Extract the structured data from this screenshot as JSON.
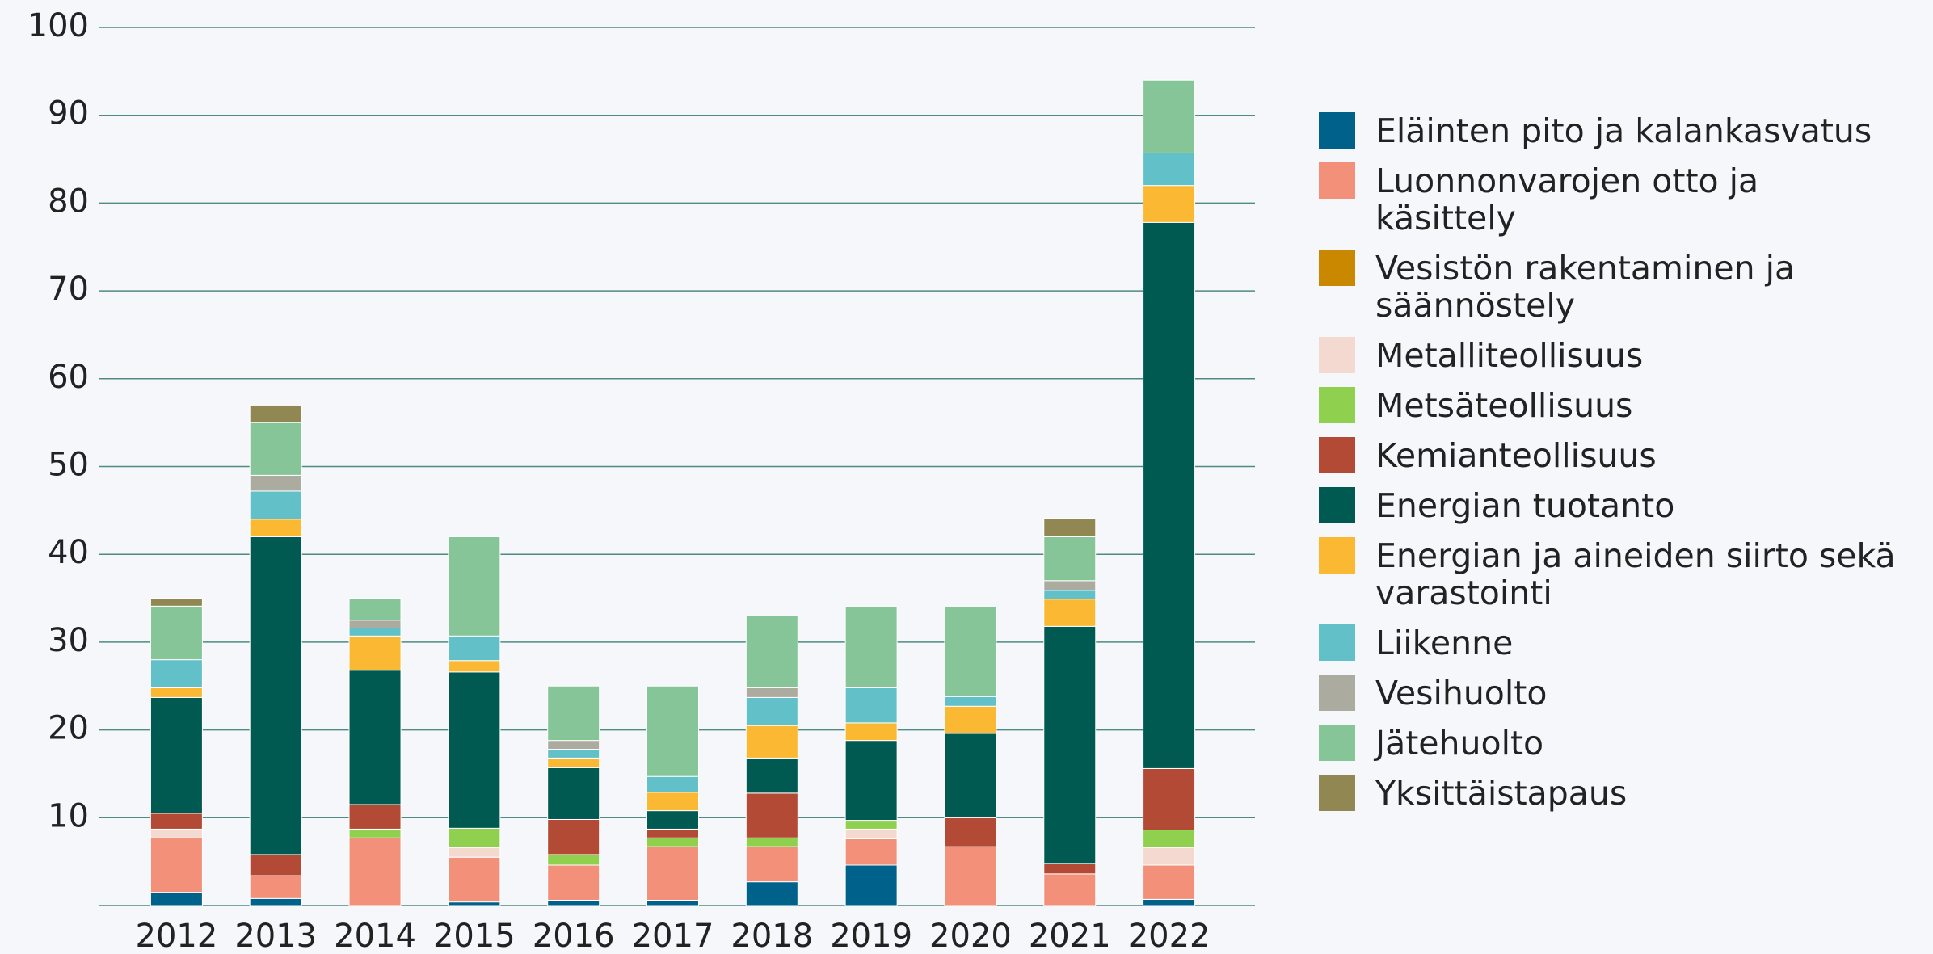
{
  "chart_data": {
    "type": "stacked_bar",
    "categories": [
      "2012",
      "2013",
      "2014",
      "2015",
      "2016",
      "2017",
      "2018",
      "2019",
      "2020",
      "2021",
      "2022"
    ],
    "ylim": [
      0,
      100
    ],
    "yticks": [
      10,
      20,
      30,
      40,
      50,
      60,
      70,
      80,
      90,
      100
    ],
    "grid": true,
    "legend": "right",
    "series": [
      {
        "name": "Eläinten pito ja kalankasvatus",
        "color": "#00628a",
        "values": [
          1.5,
          0.8,
          0,
          0.4,
          0.6,
          0.6,
          2.7,
          4.6,
          0,
          0,
          0.7
        ]
      },
      {
        "name": "Luonnonvarojen otto ja käsittely",
        "color": "#f2907a",
        "values": [
          6.2,
          2.6,
          7.7,
          5.1,
          4,
          6.1,
          4,
          3,
          6.7,
          3.6,
          3.9
        ]
      },
      {
        "name": "Vesistön rakentaminen ja säännöstely",
        "color": "#c98800",
        "values": [
          0,
          0,
          0,
          0,
          0,
          0,
          0,
          0,
          0,
          0,
          0
        ]
      },
      {
        "name": "Metalliteollisuus",
        "color": "#f4d9d0",
        "values": [
          1,
          0,
          0,
          1.1,
          0,
          0,
          0,
          1.1,
          0,
          0,
          2
        ]
      },
      {
        "name": "Metsäteollisuus",
        "color": "#8fd14f",
        "values": [
          0,
          0,
          1,
          2.2,
          1.2,
          1,
          1,
          1,
          0,
          0,
          2
        ]
      },
      {
        "name": "Kemianteollisuus",
        "color": "#b34a36",
        "values": [
          1.8,
          2.4,
          2.8,
          0,
          4,
          1,
          5.1,
          0,
          3.3,
          1.2,
          7
        ]
      },
      {
        "name": "Energian tuotanto",
        "color": "#005a52",
        "values": [
          13.2,
          36.2,
          15.3,
          17.8,
          5.9,
          2.1,
          4,
          9.1,
          9.6,
          27,
          62.2
        ]
      },
      {
        "name": "Energian ja aineiden siirto sekä varastointi",
        "color": "#fbb832",
        "values": [
          1.1,
          2,
          3.9,
          1.3,
          1.1,
          2.1,
          3.7,
          2,
          3.1,
          3.1,
          4.2
        ]
      },
      {
        "name": "Liikenne",
        "color": "#62c0c8",
        "values": [
          3.2,
          3.2,
          0.9,
          2.8,
          1,
          1.8,
          3.2,
          4,
          1.1,
          1,
          3.7
        ]
      },
      {
        "name": "Vesihuolto",
        "color": "#ababa0",
        "values": [
          0,
          1.8,
          0.9,
          0,
          1,
          0,
          1.1,
          0,
          0,
          1.1,
          0
        ]
      },
      {
        "name": "Jätehuolto",
        "color": "#86c597",
        "values": [
          6.1,
          6,
          2.5,
          11.3,
          6.2,
          10.3,
          8.2,
          9.2,
          10.2,
          5,
          8.3
        ]
      },
      {
        "name": "Yksittäistapaus",
        "color": "#918752",
        "values": [
          0.9,
          2,
          0,
          0,
          0,
          0,
          0,
          0,
          0,
          2.1,
          0
        ]
      }
    ]
  }
}
